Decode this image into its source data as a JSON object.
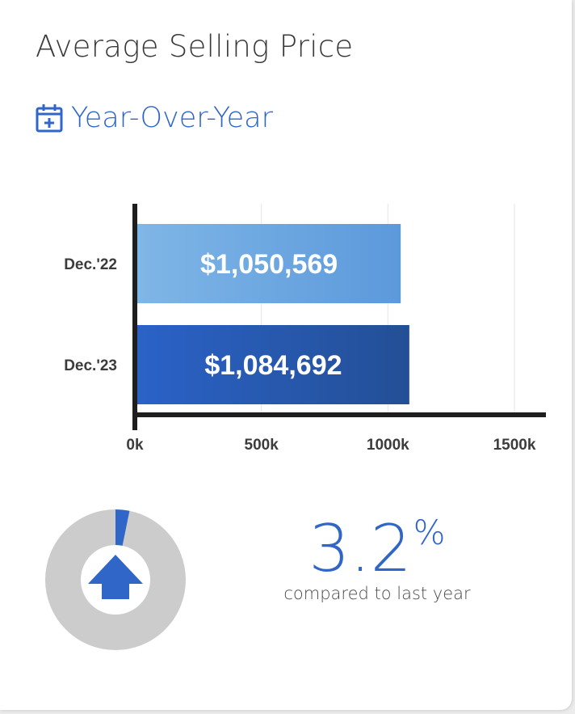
{
  "title": "Average Selling Price",
  "period": {
    "label": "Year-Over-Year",
    "icon": "calendar-plus-icon"
  },
  "colors": {
    "accent": "#2f66c8",
    "bar_prev_start": "#7fb6e6",
    "bar_prev_end": "#5c99dc",
    "bar_curr_start": "#2a62c7",
    "bar_curr_end": "#244f96",
    "axis": "#1e1e1e",
    "gauge_track": "#cccccc"
  },
  "chart_data": {
    "type": "bar",
    "orientation": "horizontal",
    "categories": [
      "Dec.'22",
      "Dec.'23"
    ],
    "values": [
      1050569,
      1084692
    ],
    "data_labels": [
      "$1,050,569",
      "$1,084,692"
    ],
    "x_ticks": [
      "0k",
      "500k",
      "1000k",
      "1500k"
    ],
    "x_tick_values": [
      0,
      500000,
      1000000,
      1500000
    ],
    "xlim": [
      0,
      1600000
    ],
    "grid": true
  },
  "change": {
    "value": "3.2",
    "unit": "%",
    "direction": "up",
    "fraction": 0.032,
    "caption": "compared to last year",
    "icon": "arrow-up-icon"
  }
}
